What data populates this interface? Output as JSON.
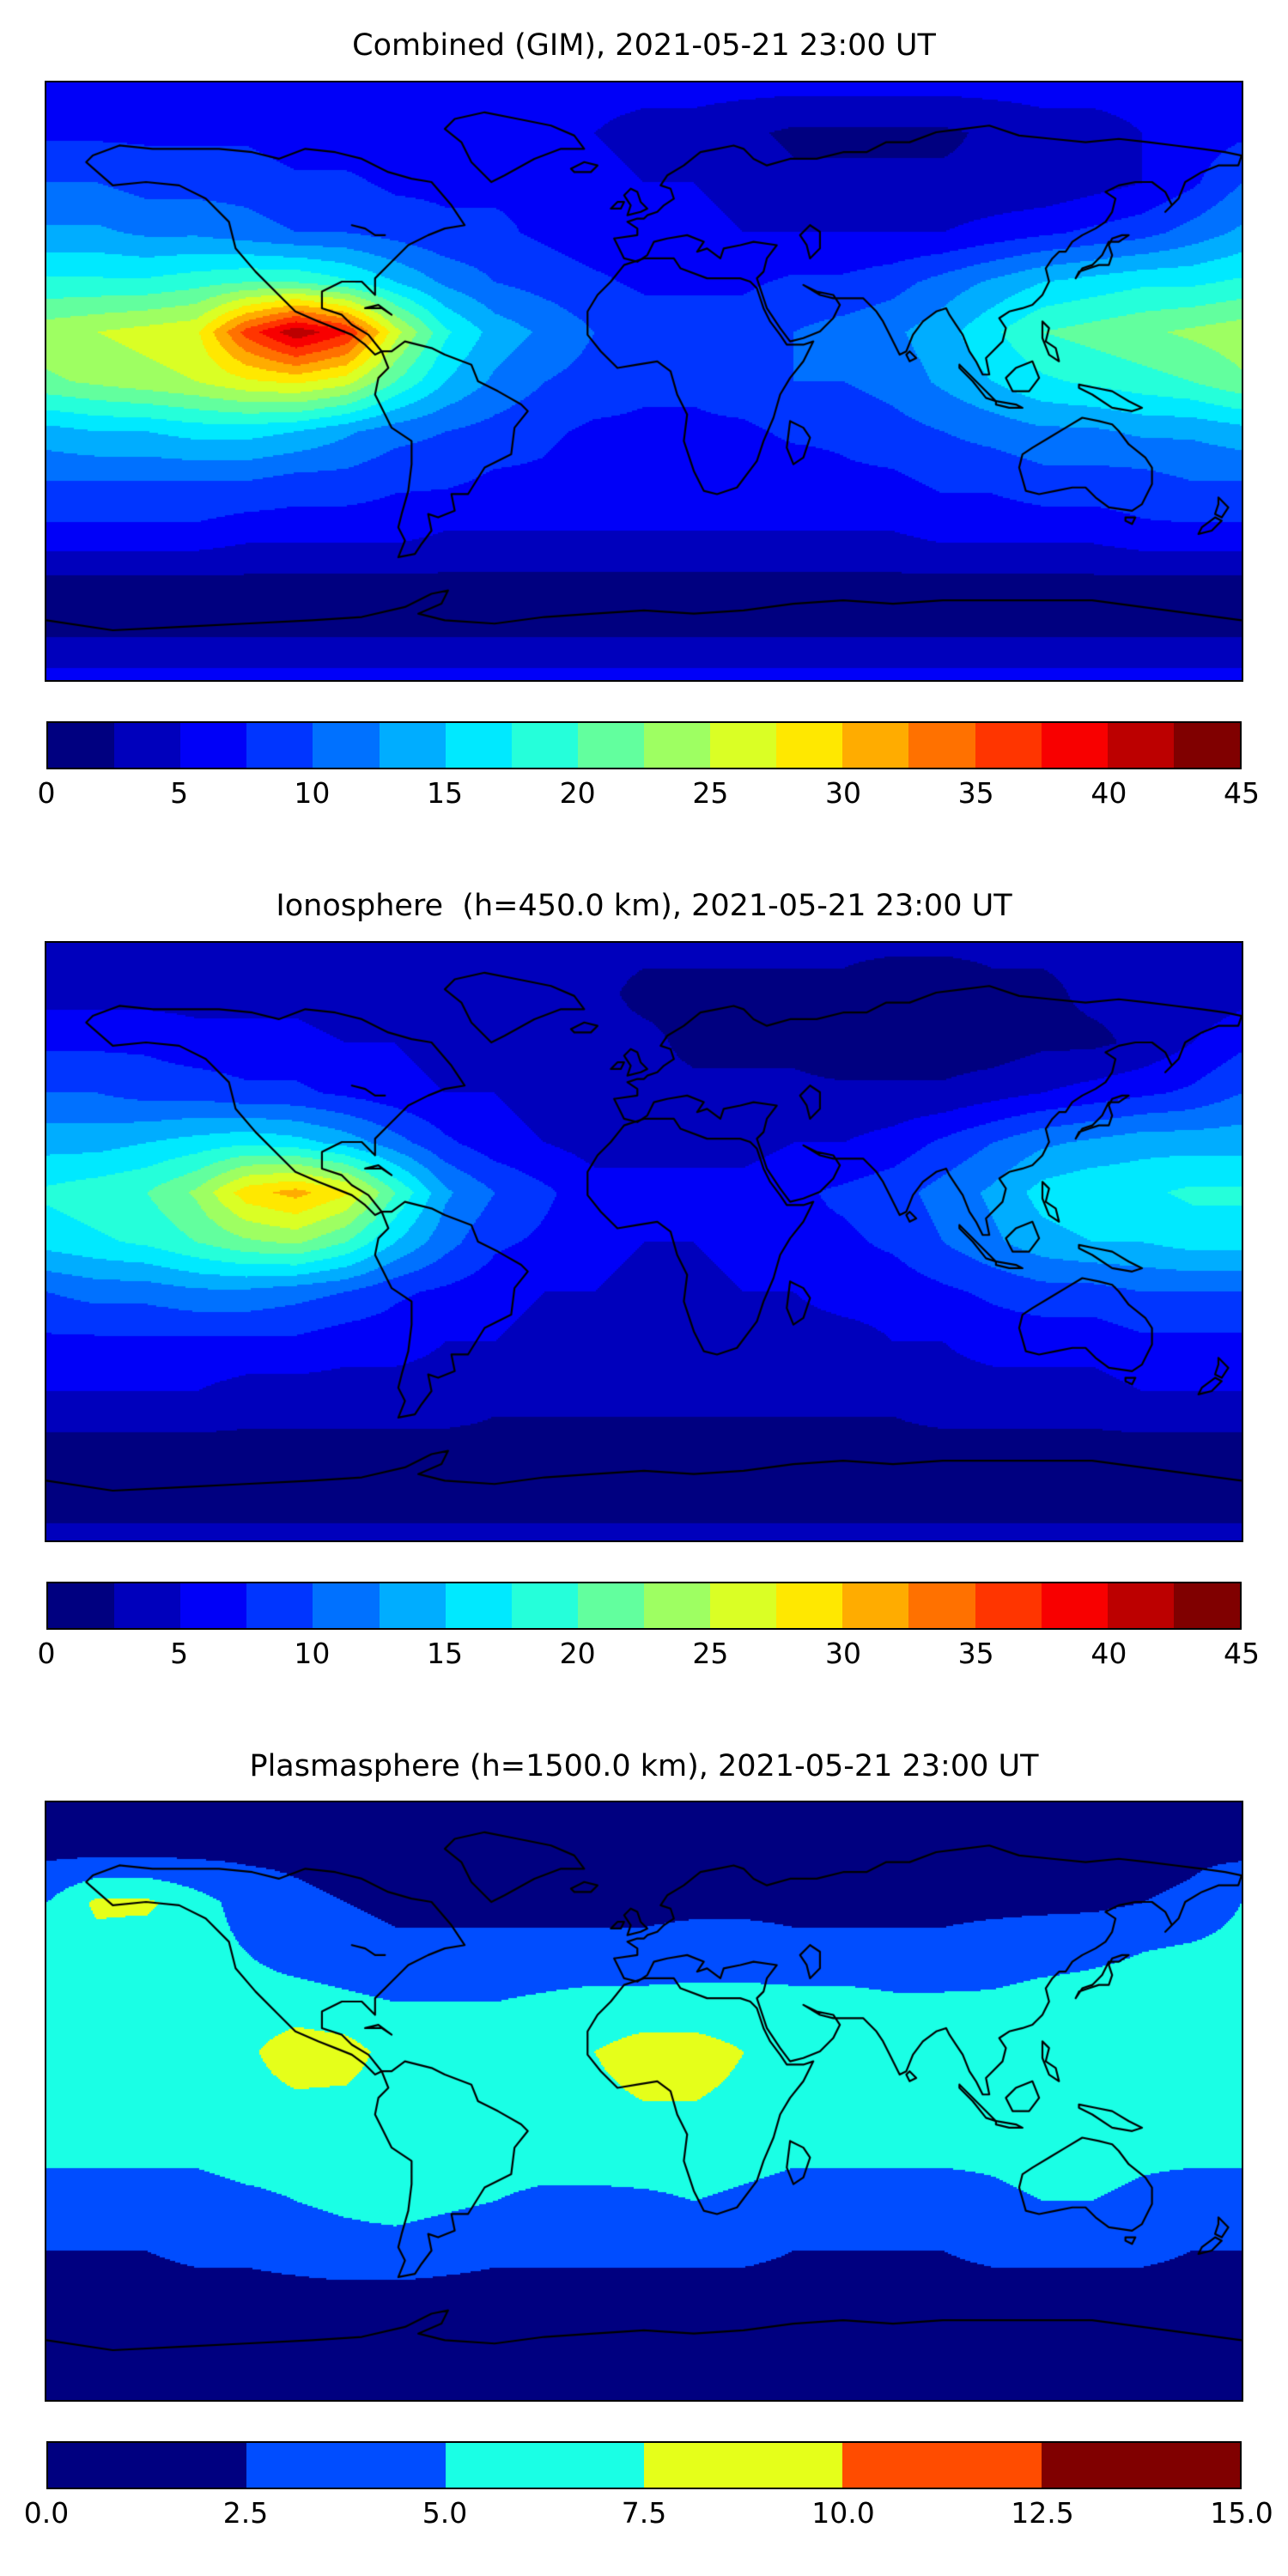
{
  "figure_background": "#ffffff",
  "chart_data": [
    {
      "type": "heatmap",
      "title": "Combined (GIM), 2021-05-21 23:00 UT",
      "colormap": "jet",
      "projection": "equirectangular",
      "colorbar": {
        "min": 0,
        "max": 45,
        "n_levels": 18,
        "tick_labels": [
          "0",
          "5",
          "10",
          "15",
          "20",
          "25",
          "30",
          "35",
          "40",
          "45"
        ]
      },
      "grid": {
        "lats": [
          90,
          75,
          60,
          45,
          30,
          15,
          0,
          -15,
          -30,
          -45,
          -60,
          -75,
          -90
        ],
        "lons": [
          -180,
          -165,
          -150,
          -135,
          -120,
          -105,
          -90,
          -75,
          -60,
          -45,
          -30,
          -15,
          0,
          15,
          30,
          45,
          60,
          75,
          90,
          105,
          120,
          135,
          150,
          165,
          180
        ],
        "values": [
          [
            6,
            6,
            6,
            6,
            6,
            6,
            6,
            6,
            6,
            6,
            6,
            6,
            6,
            6,
            6,
            6,
            6,
            6,
            6,
            6,
            6,
            6,
            6,
            6,
            6
          ],
          [
            7,
            7,
            7,
            7,
            7,
            6,
            6,
            6,
            6,
            6,
            5,
            5,
            4,
            4,
            3,
            2,
            2,
            2,
            2,
            3,
            4,
            4,
            5,
            6,
            7
          ],
          [
            10,
            10,
            9,
            9,
            9,
            8,
            8,
            7,
            7,
            7,
            7,
            6,
            5,
            5,
            4,
            3,
            3,
            3,
            3,
            3,
            3,
            4,
            5,
            7,
            10
          ],
          [
            13,
            13,
            12,
            12,
            11,
            10,
            10,
            9,
            8,
            8,
            7,
            6,
            6,
            6,
            5,
            5,
            5,
            5,
            5,
            6,
            7,
            8,
            9,
            11,
            13
          ],
          [
            18,
            18,
            18,
            19,
            20,
            20,
            18,
            15,
            12,
            10,
            9,
            8,
            7,
            7,
            7,
            8,
            8,
            9,
            11,
            13,
            15,
            16,
            17,
            17,
            18
          ],
          [
            24,
            25,
            26,
            27,
            36,
            42,
            38,
            26,
            18,
            14,
            12,
            10,
            9,
            9,
            9,
            10,
            11,
            12,
            14,
            17,
            20,
            21,
            22,
            23,
            24
          ],
          [
            22,
            23,
            24,
            25,
            27,
            28,
            26,
            20,
            15,
            12,
            10,
            9,
            8,
            8,
            9,
            10,
            10,
            11,
            13,
            15,
            17,
            18,
            19,
            20,
            22
          ],
          [
            14,
            15,
            15,
            16,
            16,
            15,
            13,
            11,
            10,
            9,
            8,
            7,
            7,
            7,
            7,
            8,
            8,
            9,
            10,
            11,
            12,
            12,
            13,
            13,
            14
          ],
          [
            10,
            10,
            10,
            10,
            10,
            9,
            9,
            8,
            8,
            7,
            7,
            6,
            6,
            6,
            6,
            6,
            7,
            7,
            8,
            8,
            9,
            9,
            9,
            10,
            10
          ],
          [
            7,
            7,
            7,
            7,
            6,
            6,
            6,
            6,
            5,
            5,
            5,
            5,
            5,
            5,
            5,
            5,
            5,
            5,
            6,
            6,
            6,
            6,
            7,
            7,
            7
          ],
          [
            2,
            2,
            2,
            2,
            2,
            2,
            2,
            2,
            2,
            2,
            2,
            2,
            2,
            2,
            2,
            2,
            2,
            2,
            2,
            2,
            2,
            2,
            2,
            2,
            2
          ],
          [
            2,
            2,
            2,
            2,
            2,
            2,
            2,
            2,
            2,
            2,
            2,
            2,
            2,
            2,
            2,
            2,
            2,
            2,
            2,
            2,
            2,
            2,
            2,
            2,
            2
          ],
          [
            6,
            6,
            6,
            6,
            6,
            6,
            6,
            6,
            6,
            6,
            6,
            6,
            6,
            6,
            6,
            6,
            6,
            6,
            6,
            6,
            6,
            6,
            6,
            6,
            6
          ]
        ]
      }
    },
    {
      "type": "heatmap",
      "title": "Ionosphere  (h=450.0 km), 2021-05-21 23:00 UT",
      "colormap": "jet",
      "projection": "equirectangular",
      "colorbar": {
        "min": 0,
        "max": 45,
        "n_levels": 18,
        "tick_labels": [
          "0",
          "5",
          "10",
          "15",
          "20",
          "25",
          "30",
          "35",
          "40",
          "45"
        ]
      },
      "grid": {
        "lats": [
          90,
          75,
          60,
          45,
          30,
          15,
          0,
          -15,
          -30,
          -45,
          -60,
          -75,
          -90
        ],
        "lons": [
          -180,
          -165,
          -150,
          -135,
          -120,
          -105,
          -90,
          -75,
          -60,
          -45,
          -30,
          -15,
          0,
          15,
          30,
          45,
          60,
          75,
          90,
          105,
          120,
          135,
          150,
          165,
          180
        ],
        "values": [
          [
            3,
            3,
            3,
            3,
            3,
            3,
            3,
            3,
            3,
            3,
            3,
            3,
            3,
            3,
            3,
            3,
            3,
            3,
            3,
            3,
            3,
            3,
            3,
            3,
            3
          ],
          [
            4,
            4,
            4,
            4,
            4,
            4,
            3,
            3,
            3,
            3,
            3,
            3,
            2,
            2,
            2,
            2,
            2,
            1,
            1,
            2,
            2,
            3,
            3,
            3,
            4
          ],
          [
            7,
            7,
            7,
            6,
            6,
            6,
            5,
            5,
            4,
            4,
            4,
            3,
            3,
            2,
            2,
            2,
            1,
            1,
            1,
            1,
            2,
            2,
            3,
            5,
            7
          ],
          [
            10,
            10,
            9,
            9,
            8,
            8,
            7,
            6,
            5,
            5,
            4,
            3,
            3,
            3,
            3,
            3,
            3,
            3,
            3,
            4,
            5,
            6,
            7,
            8,
            10
          ],
          [
            14,
            14,
            15,
            16,
            17,
            16,
            14,
            11,
            8,
            6,
            5,
            4,
            4,
            4,
            4,
            5,
            5,
            6,
            8,
            10,
            12,
            13,
            14,
            14,
            14
          ],
          [
            18,
            19,
            20,
            23,
            29,
            31,
            28,
            20,
            13,
            10,
            8,
            6,
            6,
            6,
            6,
            7,
            8,
            9,
            11,
            13,
            16,
            17,
            17,
            18,
            18
          ],
          [
            16,
            17,
            18,
            20,
            22,
            23,
            20,
            15,
            11,
            8,
            7,
            6,
            5,
            5,
            6,
            7,
            7,
            8,
            10,
            12,
            14,
            15,
            15,
            16,
            16
          ],
          [
            10,
            11,
            11,
            12,
            12,
            11,
            10,
            8,
            7,
            6,
            5,
            5,
            4,
            4,
            5,
            5,
            6,
            6,
            7,
            8,
            9,
            9,
            10,
            10,
            10
          ],
          [
            7,
            7,
            7,
            7,
            7,
            7,
            6,
            6,
            5,
            5,
            4,
            4,
            4,
            4,
            4,
            4,
            4,
            5,
            5,
            6,
            6,
            6,
            7,
            7,
            7
          ],
          [
            5,
            5,
            5,
            5,
            4,
            4,
            4,
            4,
            4,
            3,
            3,
            3,
            3,
            3,
            3,
            3,
            3,
            3,
            4,
            4,
            4,
            4,
            5,
            5,
            5
          ],
          [
            2,
            2,
            2,
            2,
            2,
            2,
            2,
            2,
            2,
            2,
            2,
            2,
            2,
            2,
            2,
            2,
            2,
            2,
            2,
            2,
            2,
            2,
            2,
            2,
            2
          ],
          [
            1.5,
            1.5,
            1.5,
            1.5,
            1.5,
            1.5,
            1.5,
            1.5,
            1.5,
            1.5,
            1.5,
            1.5,
            1.5,
            1.5,
            1.5,
            1.5,
            1.5,
            1.5,
            1.5,
            1.5,
            1.5,
            1.5,
            1.5,
            1.5,
            1.5
          ],
          [
            3,
            3,
            3,
            3,
            3,
            3,
            3,
            3,
            3,
            3,
            3,
            3,
            3,
            3,
            3,
            3,
            3,
            3,
            3,
            3,
            3,
            3,
            3,
            3,
            3
          ]
        ]
      }
    },
    {
      "type": "heatmap",
      "title": "Plasmasphere (h=1500.0 km), 2021-05-21 23:00 UT",
      "colormap": "jet",
      "projection": "equirectangular",
      "colorbar": {
        "min": 0,
        "max": 15,
        "n_levels": 6,
        "tick_labels": [
          "0.0",
          "2.5",
          "5.0",
          "7.5",
          "10.0",
          "12.5",
          "15.0"
        ]
      },
      "grid": {
        "lats": [
          90,
          75,
          60,
          45,
          30,
          15,
          0,
          -15,
          -30,
          -45,
          -60,
          -75,
          -90
        ],
        "lons": [
          -180,
          -165,
          -150,
          -135,
          -120,
          -105,
          -90,
          -75,
          -60,
          -45,
          -30,
          -15,
          0,
          15,
          30,
          45,
          60,
          75,
          90,
          105,
          120,
          135,
          150,
          165,
          180
        ],
        "values": [
          [
            1.5,
            1.5,
            1.5,
            1.5,
            1.5,
            1.5,
            1.5,
            1.5,
            1.5,
            1.5,
            1.5,
            1.5,
            1.5,
            1.5,
            1.5,
            1.5,
            1.5,
            1.5,
            1.5,
            1.5,
            1.5,
            1.5,
            1.5,
            1.5,
            1.5
          ],
          [
            2,
            2,
            2,
            2,
            2,
            2,
            1.5,
            1.5,
            1.5,
            1.5,
            1.5,
            1.5,
            1.5,
            1.5,
            1.5,
            1.5,
            1.5,
            1.5,
            1.5,
            1.5,
            1.5,
            1.5,
            1.5,
            2,
            2
          ],
          [
            5,
            8,
            8,
            6,
            4,
            3,
            2.5,
            2,
            2,
            2,
            2,
            2,
            2,
            2,
            2,
            2,
            2,
            2,
            2,
            2,
            2,
            2,
            2.5,
            3,
            5
          ],
          [
            6,
            6.5,
            6,
            6,
            5,
            4,
            3.5,
            3,
            3,
            3,
            3,
            3,
            3,
            3.5,
            3.5,
            3,
            3,
            3,
            3,
            3.5,
            4,
            4.5,
            5,
            5.5,
            6
          ],
          [
            6.5,
            6.5,
            6,
            6,
            6,
            6,
            5.5,
            5,
            5,
            5,
            5.5,
            6,
            6,
            6,
            6,
            6,
            6,
            5.5,
            5.5,
            5.5,
            6,
            6,
            6,
            6.5,
            6.5
          ],
          [
            6,
            6,
            6,
            6,
            7,
            9,
            8.5,
            6.5,
            6,
            6,
            6.5,
            7.5,
            8.5,
            8.5,
            7.5,
            7,
            6.5,
            6,
            6,
            6,
            6.5,
            6.5,
            6.5,
            6,
            6
          ],
          [
            6,
            6,
            6,
            6,
            6.5,
            7,
            7,
            6.5,
            6,
            6,
            6.5,
            7,
            7.5,
            7.5,
            7,
            6.5,
            6,
            6,
            6,
            6,
            6.5,
            6.5,
            6,
            6,
            6
          ],
          [
            5.5,
            5.5,
            5.5,
            5.5,
            6,
            6,
            6.5,
            6.5,
            6,
            6,
            6,
            6,
            6.5,
            6.5,
            6,
            5.5,
            5.5,
            5.5,
            5.5,
            5.5,
            6,
            6,
            5.5,
            5.5,
            5.5
          ],
          [
            4,
            4,
            4,
            4,
            4.5,
            5,
            5.5,
            6,
            5.5,
            5,
            4.5,
            4.5,
            4.5,
            5,
            4.5,
            4,
            4,
            4,
            4,
            4.5,
            5,
            5,
            4.5,
            4,
            4
          ],
          [
            2.5,
            2.5,
            2.5,
            3,
            3,
            3.5,
            4,
            4,
            3.5,
            3,
            3,
            3,
            3,
            3,
            3,
            2.5,
            2.5,
            2.5,
            2.5,
            3,
            3,
            3,
            3,
            2.5,
            2.5
          ],
          [
            1.5,
            1.5,
            1.5,
            1.5,
            1.5,
            1.5,
            1.5,
            1.5,
            1.5,
            1.5,
            1.5,
            1.5,
            1.5,
            1.5,
            1.5,
            1.5,
            1.5,
            1.5,
            1.5,
            1.5,
            1.5,
            1.5,
            1.5,
            1.5,
            1.5
          ],
          [
            1.5,
            1.5,
            1.5,
            1.5,
            1.5,
            1.5,
            1.5,
            1.5,
            1.5,
            1.5,
            1.5,
            1.5,
            1.5,
            1.5,
            1.5,
            1.5,
            1.5,
            1.5,
            1.5,
            1.5,
            1.5,
            1.5,
            1.5,
            1.5,
            1.5
          ],
          [
            2,
            2,
            2,
            2,
            2,
            2,
            2,
            2,
            2,
            2,
            2,
            2,
            2,
            2,
            2,
            2,
            2,
            2,
            2,
            2,
            2,
            2,
            2,
            2,
            2
          ]
        ]
      }
    }
  ]
}
